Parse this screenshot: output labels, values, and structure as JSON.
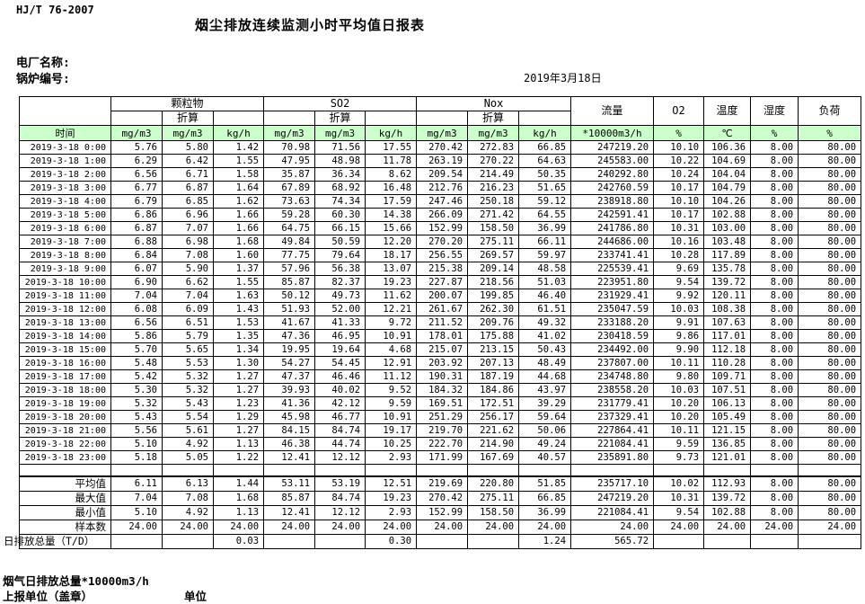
{
  "page": {
    "standard_code": "HJ/T  76-2007",
    "title": "烟尘排放连续监测小时平均值日报表",
    "plant_name_label": "电厂名称:",
    "boiler_no_label": "锅炉编号:",
    "report_date": "2019年3月18日"
  },
  "colors": {
    "header_green": "#ccffcc",
    "border": "#000000"
  },
  "table": {
    "time_header": "时间",
    "groups": [
      {
        "label": "颗粒物",
        "sub": "折算"
      },
      {
        "label": "SO2",
        "sub": "折算"
      },
      {
        "label": "Nox",
        "sub": "折算"
      }
    ],
    "scalar_columns": [
      {
        "label": "流量"
      },
      {
        "label": "O2"
      },
      {
        "label": "温度"
      },
      {
        "label": "湿度"
      },
      {
        "label": "负荷"
      }
    ],
    "unit_row": [
      "mg/m3",
      "mg/m3",
      "kg/h",
      "mg/m3",
      "mg/m3",
      "kg/h",
      "mg/m3",
      "mg/m3",
      "kg/h",
      "*10000m3/h",
      "%",
      "℃",
      "%",
      "%"
    ],
    "rows": [
      {
        "time": "2019-3-18 0:00",
        "values": [
          "5.76",
          "5.80",
          "1.42",
          "70.98",
          "71.56",
          "17.55",
          "270.42",
          "272.83",
          "66.85",
          "247219.20",
          "10.10",
          "106.36",
          "8.00",
          "80.00"
        ]
      },
      {
        "time": "2019-3-18 1:00",
        "values": [
          "6.29",
          "6.42",
          "1.55",
          "47.95",
          "48.98",
          "11.78",
          "263.19",
          "270.22",
          "64.63",
          "245583.00",
          "10.22",
          "104.69",
          "8.00",
          "80.00"
        ]
      },
      {
        "time": "2019-3-18 2:00",
        "values": [
          "6.56",
          "6.71",
          "1.58",
          "35.87",
          "36.34",
          "8.62",
          "209.54",
          "214.49",
          "50.35",
          "240292.80",
          "10.24",
          "104.04",
          "8.00",
          "80.00"
        ]
      },
      {
        "time": "2019-3-18 3:00",
        "values": [
          "6.77",
          "6.87",
          "1.64",
          "67.89",
          "68.92",
          "16.48",
          "212.76",
          "216.23",
          "51.65",
          "242760.59",
          "10.17",
          "104.79",
          "8.00",
          "80.00"
        ]
      },
      {
        "time": "2019-3-18 4:00",
        "values": [
          "6.79",
          "6.85",
          "1.62",
          "73.63",
          "74.34",
          "17.59",
          "247.46",
          "250.18",
          "59.12",
          "238918.80",
          "10.10",
          "104.26",
          "8.00",
          "80.00"
        ]
      },
      {
        "time": "2019-3-18 5:00",
        "values": [
          "6.86",
          "6.96",
          "1.66",
          "59.28",
          "60.30",
          "14.38",
          "266.09",
          "271.42",
          "64.55",
          "242591.41",
          "10.17",
          "102.88",
          "8.00",
          "80.00"
        ]
      },
      {
        "time": "2019-3-18 6:00",
        "values": [
          "6.87",
          "7.07",
          "1.66",
          "64.75",
          "66.15",
          "15.66",
          "152.99",
          "158.50",
          "36.99",
          "241786.80",
          "10.31",
          "103.00",
          "8.00",
          "80.00"
        ]
      },
      {
        "time": "2019-3-18 7:00",
        "values": [
          "6.88",
          "6.98",
          "1.68",
          "49.84",
          "50.59",
          "12.20",
          "270.20",
          "275.11",
          "66.11",
          "244686.00",
          "10.16",
          "103.48",
          "8.00",
          "80.00"
        ]
      },
      {
        "time": "2019-3-18 8:00",
        "values": [
          "6.84",
          "7.08",
          "1.60",
          "77.75",
          "79.64",
          "18.17",
          "256.55",
          "269.57",
          "59.97",
          "233741.41",
          "10.28",
          "117.89",
          "8.00",
          "80.00"
        ]
      },
      {
        "time": "2019-3-18 9:00",
        "values": [
          "6.07",
          "5.90",
          "1.37",
          "57.96",
          "56.38",
          "13.07",
          "215.38",
          "209.14",
          "48.58",
          "225539.41",
          "9.69",
          "135.78",
          "8.00",
          "80.00"
        ]
      },
      {
        "time": "2019-3-18 10:00",
        "values": [
          "6.90",
          "6.62",
          "1.55",
          "85.87",
          "82.37",
          "19.23",
          "227.87",
          "218.56",
          "51.03",
          "223951.80",
          "9.54",
          "139.72",
          "8.00",
          "80.00"
        ]
      },
      {
        "time": "2019-3-18 11:00",
        "values": [
          "7.04",
          "7.04",
          "1.63",
          "50.12",
          "49.73",
          "11.62",
          "200.07",
          "199.85",
          "46.40",
          "231929.41",
          "9.92",
          "120.11",
          "8.00",
          "80.00"
        ]
      },
      {
        "time": "2019-3-18 12:00",
        "values": [
          "6.08",
          "6.09",
          "1.43",
          "51.93",
          "52.00",
          "12.21",
          "261.67",
          "262.30",
          "61.51",
          "235047.59",
          "10.03",
          "108.38",
          "8.00",
          "80.00"
        ]
      },
      {
        "time": "2019-3-18 13:00",
        "values": [
          "6.56",
          "6.51",
          "1.53",
          "41.67",
          "41.33",
          "9.72",
          "211.52",
          "209.76",
          "49.32",
          "233188.20",
          "9.91",
          "107.63",
          "8.00",
          "80.00"
        ]
      },
      {
        "time": "2019-3-18 14:00",
        "values": [
          "5.86",
          "5.79",
          "1.35",
          "47.36",
          "46.95",
          "10.91",
          "178.01",
          "175.88",
          "41.02",
          "230418.59",
          "9.86",
          "117.01",
          "8.00",
          "80.00"
        ]
      },
      {
        "time": "2019-3-18 15:00",
        "values": [
          "5.70",
          "5.65",
          "1.34",
          "19.95",
          "19.64",
          "4.68",
          "215.07",
          "213.15",
          "50.43",
          "234492.00",
          "9.90",
          "112.18",
          "8.00",
          "80.00"
        ]
      },
      {
        "time": "2019-3-18 16:00",
        "values": [
          "5.48",
          "5.53",
          "1.30",
          "54.27",
          "54.45",
          "12.91",
          "203.92",
          "207.13",
          "48.49",
          "237807.00",
          "10.11",
          "110.28",
          "8.00",
          "80.00"
        ]
      },
      {
        "time": "2019-3-18 17:00",
        "values": [
          "5.42",
          "5.32",
          "1.27",
          "47.37",
          "46.46",
          "11.12",
          "190.31",
          "187.19",
          "44.68",
          "234748.80",
          "9.80",
          "109.71",
          "8.00",
          "80.00"
        ]
      },
      {
        "time": "2019-3-18 18:00",
        "values": [
          "5.30",
          "5.32",
          "1.27",
          "39.93",
          "40.02",
          "9.52",
          "184.32",
          "184.86",
          "43.97",
          "238558.20",
          "10.03",
          "107.51",
          "8.00",
          "80.00"
        ]
      },
      {
        "time": "2019-3-18 19:00",
        "values": [
          "5.32",
          "5.43",
          "1.23",
          "41.36",
          "42.12",
          "9.59",
          "169.51",
          "172.51",
          "39.29",
          "231779.41",
          "10.20",
          "106.13",
          "8.00",
          "80.00"
        ]
      },
      {
        "time": "2019-3-18 20:00",
        "values": [
          "5.43",
          "5.54",
          "1.29",
          "45.98",
          "46.77",
          "10.91",
          "251.29",
          "256.17",
          "59.64",
          "237329.41",
          "10.20",
          "105.49",
          "8.00",
          "80.00"
        ]
      },
      {
        "time": "2019-3-18 21:00",
        "values": [
          "5.56",
          "5.61",
          "1.27",
          "84.15",
          "84.74",
          "19.17",
          "219.70",
          "221.62",
          "50.06",
          "227864.41",
          "10.11",
          "121.15",
          "8.00",
          "80.00"
        ]
      },
      {
        "time": "2019-3-18 22:00",
        "values": [
          "5.10",
          "4.92",
          "1.13",
          "46.38",
          "44.74",
          "10.25",
          "222.70",
          "214.90",
          "49.24",
          "221084.41",
          "9.59",
          "136.85",
          "8.00",
          "80.00"
        ]
      },
      {
        "time": "2019-3-18 23:00",
        "values": [
          "5.18",
          "5.05",
          "1.22",
          "12.41",
          "12.12",
          "2.93",
          "171.99",
          "167.69",
          "40.57",
          "235891.80",
          "9.73",
          "121.01",
          "8.00",
          "80.00"
        ]
      }
    ],
    "summary_rows": [
      {
        "label": "平均值",
        "values": [
          "6.11",
          "6.13",
          "1.44",
          "53.11",
          "53.19",
          "12.51",
          "219.69",
          "220.80",
          "51.85",
          "235717.10",
          "10.02",
          "112.93",
          "8.00",
          "80.00"
        ]
      },
      {
        "label": "最大值",
        "values": [
          "7.04",
          "7.08",
          "1.68",
          "85.87",
          "84.74",
          "19.23",
          "270.42",
          "275.11",
          "66.85",
          "247219.20",
          "10.31",
          "139.72",
          "8.00",
          "80.00"
        ]
      },
      {
        "label": "最小值",
        "values": [
          "5.10",
          "4.92",
          "1.13",
          "12.41",
          "12.12",
          "2.93",
          "152.99",
          "158.50",
          "36.99",
          "221084.41",
          "9.54",
          "102.88",
          "8.00",
          "80.00"
        ]
      },
      {
        "label": "样本数",
        "values": [
          "24.00",
          "24.00",
          "24.00",
          "24.00",
          "24.00",
          "24.00",
          "24.00",
          "24.00",
          "24.00",
          "24.00",
          "24.00",
          "24.00",
          "24.00",
          "24.00"
        ]
      }
    ],
    "daily_total_row": {
      "label": "日排放总量（T/D）",
      "values": [
        "",
        "",
        "0.03",
        "",
        "",
        "0.30",
        "",
        "",
        "1.24",
        "565.72",
        "",
        "",
        "",
        ""
      ]
    }
  },
  "footer": {
    "flue_gas_total_label": "烟气日排放总量*10000m3/h",
    "report_unit_label": "上报单位（盖章）",
    "unit_label": "单位"
  }
}
